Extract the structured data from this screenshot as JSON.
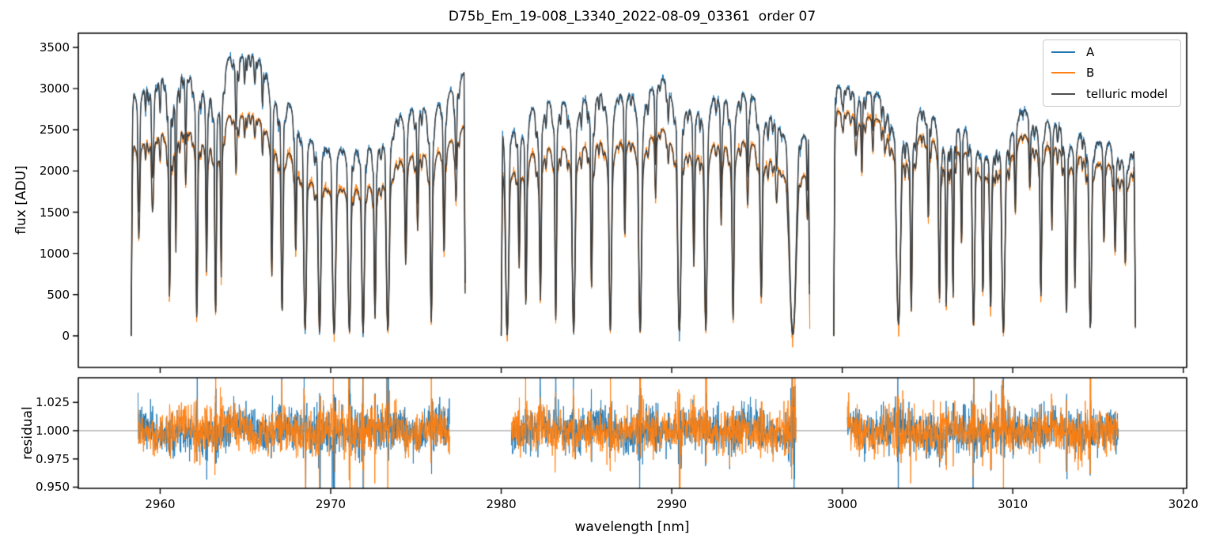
{
  "chart_data": {
    "type": "line",
    "title": "D75b_Em_19-008_L3340_2022-08-09_03361  order 07",
    "grid": false,
    "x": {
      "label": "wavelength [nm]",
      "lim": [
        2955.2,
        3020.2
      ],
      "ticks": [
        2960,
        2970,
        2980,
        2990,
        3000,
        3010,
        3020
      ],
      "tick_labels": [
        "2960",
        "2970",
        "2980",
        "2990",
        "3000",
        "3010",
        "3020"
      ]
    },
    "flux_axis": {
      "label": "flux [ADU]",
      "lim": [
        -384,
        3672
      ],
      "ticks": [
        0,
        500,
        1000,
        1500,
        2000,
        2500,
        3000,
        3500
      ],
      "tick_labels": [
        "0",
        "500",
        "1000",
        "1500",
        "2000",
        "2500",
        "3000",
        "3500"
      ]
    },
    "residual_axis": {
      "label": "residual",
      "lim": [
        0.9489,
        1.0469
      ],
      "ticks": [
        0.95,
        0.975,
        1.0,
        1.025
      ],
      "tick_labels": [
        "0.950",
        "0.975",
        "1.000",
        "1.025"
      ],
      "reference_value": 1.0,
      "reference_color": "#8a8a8a"
    },
    "legend": {
      "position": "upper right",
      "entries": [
        {
          "label": "A",
          "color": "#1f77b4"
        },
        {
          "label": "B",
          "color": "#ff7f0e"
        },
        {
          "label": "telluric model",
          "color": "#4d4d4d"
        }
      ]
    },
    "series": [
      {
        "name": "A",
        "role": "data",
        "color": "#1f77b4"
      },
      {
        "name": "B",
        "role": "data",
        "color": "#ff7f0e"
      },
      {
        "name": "telluric model",
        "role": "model",
        "color": "#3d3d3d"
      }
    ],
    "segments": [
      {
        "flux_range": [
          2958.3,
          2977.9
        ],
        "residual_range": [
          2958.7,
          2977.0
        ]
      },
      {
        "flux_range": [
          2980.0,
          2998.1
        ],
        "residual_range": [
          2980.6,
          2997.3
        ]
      },
      {
        "flux_range": [
          2999.5,
          3017.2
        ],
        "residual_range": [
          3000.3,
          3016.2
        ]
      }
    ],
    "continuum_A": [
      [
        2958.3,
        3150
      ],
      [
        2959.2,
        3330
      ],
      [
        2960.3,
        3440
      ],
      [
        2961.5,
        3470
      ],
      [
        2963.0,
        3490
      ],
      [
        2964.3,
        3540
      ],
      [
        2965.3,
        3560
      ],
      [
        2966.2,
        3470
      ],
      [
        2967.0,
        3330
      ],
      [
        2967.8,
        3130
      ],
      [
        2968.8,
        3030
      ],
      [
        2970.0,
        2970
      ],
      [
        2971.3,
        2910
      ],
      [
        2972.5,
        2940
      ],
      [
        2973.8,
        3010
      ],
      [
        2975.0,
        3080
      ],
      [
        2976.2,
        3170
      ],
      [
        2977.3,
        3230
      ],
      [
        2977.9,
        3250
      ],
      [
        2980.0,
        3000
      ],
      [
        2981.0,
        3060
      ],
      [
        2982.5,
        3140
      ],
      [
        2984.0,
        3220
      ],
      [
        2986.0,
        3300
      ],
      [
        2988.0,
        3350
      ],
      [
        2989.5,
        3360
      ],
      [
        2991.0,
        3330
      ],
      [
        2992.5,
        3290
      ],
      [
        2994.0,
        3210
      ],
      [
        2995.5,
        3130
      ],
      [
        2997.0,
        3060
      ],
      [
        2998.1,
        3000
      ],
      [
        2999.5,
        3100
      ],
      [
        3001.0,
        3110
      ],
      [
        3003.0,
        3070
      ],
      [
        3005.0,
        2980
      ],
      [
        3007.0,
        2900
      ],
      [
        3009.0,
        2870
      ],
      [
        3010.5,
        2900
      ],
      [
        3011.5,
        2880
      ],
      [
        3013.0,
        2790
      ],
      [
        3014.5,
        2740
      ],
      [
        3015.5,
        2620
      ],
      [
        3016.3,
        2480
      ],
      [
        3017.2,
        2300
      ]
    ],
    "continuum_B": [
      [
        2958.3,
        2480
      ],
      [
        2959.2,
        2610
      ],
      [
        2960.3,
        2700
      ],
      [
        2961.5,
        2730
      ],
      [
        2963.0,
        2750
      ],
      [
        2964.3,
        2790
      ],
      [
        2965.3,
        2800
      ],
      [
        2966.2,
        2720
      ],
      [
        2967.0,
        2610
      ],
      [
        2967.8,
        2460
      ],
      [
        2968.8,
        2380
      ],
      [
        2970.0,
        2330
      ],
      [
        2971.3,
        2300
      ],
      [
        2972.5,
        2330
      ],
      [
        2973.8,
        2390
      ],
      [
        2975.0,
        2450
      ],
      [
        2976.2,
        2520
      ],
      [
        2977.3,
        2570
      ],
      [
        2977.9,
        2590
      ],
      [
        2980.0,
        2400
      ],
      [
        2981.0,
        2450
      ],
      [
        2982.5,
        2520
      ],
      [
        2984.0,
        2580
      ],
      [
        2986.0,
        2640
      ],
      [
        2988.0,
        2690
      ],
      [
        2989.5,
        2700
      ],
      [
        2991.0,
        2670
      ],
      [
        2992.5,
        2640
      ],
      [
        2994.0,
        2570
      ],
      [
        2995.5,
        2500
      ],
      [
        2997.0,
        2440
      ],
      [
        2998.1,
        2400
      ],
      [
        2999.5,
        2800
      ],
      [
        3001.0,
        2790
      ],
      [
        3003.0,
        2750
      ],
      [
        3005.0,
        2650
      ],
      [
        3007.0,
        2580
      ],
      [
        3009.0,
        2560
      ],
      [
        3010.5,
        2580
      ],
      [
        3011.5,
        2560
      ],
      [
        3013.0,
        2480
      ],
      [
        3014.5,
        2440
      ],
      [
        3015.5,
        2320
      ],
      [
        3016.3,
        2200
      ],
      [
        3017.2,
        2050
      ]
    ],
    "telluric_lines": [
      [
        2958.75,
        0.5,
        0.06
      ],
      [
        2959.55,
        0.4,
        0.06
      ],
      [
        2960.0,
        0.12,
        0.04
      ],
      [
        2960.55,
        0.83,
        0.05
      ],
      [
        2960.92,
        0.6,
        0.035
      ],
      [
        2961.5,
        0.3,
        0.045
      ],
      [
        2962.15,
        0.93,
        0.055
      ],
      [
        2962.72,
        0.7,
        0.045
      ],
      [
        2963.25,
        0.9,
        0.05
      ],
      [
        2963.58,
        0.72,
        0.04
      ],
      [
        2964.45,
        0.28,
        0.045
      ],
      [
        2964.95,
        0.12,
        0.04
      ],
      [
        2965.55,
        0.12,
        0.05
      ],
      [
        2966.0,
        0.18,
        0.04
      ],
      [
        2966.55,
        0.7,
        0.05
      ],
      [
        2967.15,
        0.9,
        0.06
      ],
      [
        2967.95,
        0.55,
        0.045
      ],
      [
        2968.5,
        0.97,
        0.085
      ],
      [
        2969.35,
        0.985,
        0.085
      ],
      [
        2970.2,
        0.99,
        0.105
      ],
      [
        2971.1,
        0.975,
        0.085
      ],
      [
        2971.9,
        0.985,
        0.085
      ],
      [
        2972.6,
        0.9,
        0.055
      ],
      [
        2973.35,
        0.975,
        0.095
      ],
      [
        2974.4,
        0.62,
        0.055
      ],
      [
        2975.1,
        0.45,
        0.05
      ],
      [
        2975.9,
        0.93,
        0.065
      ],
      [
        2976.65,
        0.6,
        0.055
      ],
      [
        2977.35,
        0.35,
        0.05
      ],
      [
        2980.35,
        0.995,
        0.1
      ],
      [
        2981.05,
        0.6,
        0.045
      ],
      [
        2981.45,
        0.85,
        0.05
      ],
      [
        2982.3,
        0.82,
        0.055
      ],
      [
        2983.2,
        0.92,
        0.05
      ],
      [
        2984.25,
        0.985,
        0.095
      ],
      [
        2985.3,
        0.78,
        0.05
      ],
      [
        2986.4,
        0.975,
        0.08
      ],
      [
        2987.25,
        0.52,
        0.045
      ],
      [
        2988.15,
        0.985,
        0.09
      ],
      [
        2989.05,
        0.28,
        0.045
      ],
      [
        2989.8,
        0.15,
        0.04
      ],
      [
        2990.45,
        0.985,
        0.105
      ],
      [
        2991.3,
        0.62,
        0.05
      ],
      [
        2992.0,
        0.975,
        0.085
      ],
      [
        2992.9,
        0.45,
        0.045
      ],
      [
        2993.6,
        0.92,
        0.06
      ],
      [
        2994.45,
        0.35,
        0.045
      ],
      [
        2995.25,
        0.82,
        0.065
      ],
      [
        2996.15,
        0.25,
        0.05
      ],
      [
        2997.1,
        0.995,
        0.21
      ],
      [
        2997.95,
        0.3,
        0.04
      ],
      [
        3000.05,
        0.1,
        0.04
      ],
      [
        3000.8,
        0.2,
        0.06
      ],
      [
        3001.15,
        0.28,
        0.04
      ],
      [
        3001.8,
        0.1,
        0.04
      ],
      [
        3002.5,
        0.12,
        0.04
      ],
      [
        3003.3,
        0.95,
        0.125
      ],
      [
        3004.05,
        0.88,
        0.055
      ],
      [
        3005.05,
        0.45,
        0.045
      ],
      [
        3005.7,
        0.82,
        0.05
      ],
      [
        3006.1,
        0.86,
        0.045
      ],
      [
        3006.5,
        0.82,
        0.04
      ],
      [
        3007.0,
        0.55,
        0.04
      ],
      [
        3007.7,
        0.95,
        0.075
      ],
      [
        3008.25,
        0.8,
        0.045
      ],
      [
        3008.7,
        0.88,
        0.055
      ],
      [
        3009.45,
        0.985,
        0.095
      ],
      [
        3010.15,
        0.35,
        0.045
      ],
      [
        3011.0,
        0.28,
        0.045
      ],
      [
        3011.65,
        0.82,
        0.05
      ],
      [
        3012.3,
        0.42,
        0.04
      ],
      [
        3013.15,
        0.9,
        0.055
      ],
      [
        3013.65,
        0.75,
        0.045
      ],
      [
        3014.55,
        0.965,
        0.075
      ],
      [
        3015.35,
        0.5,
        0.05
      ],
      [
        3016.0,
        0.48,
        0.05
      ],
      [
        3016.6,
        0.55,
        0.05
      ]
    ],
    "micro_lines_spec": {
      "mean_spacing_nm": 0.34,
      "depth_range": [
        0.03,
        0.12
      ],
      "sigma_range": [
        0.03,
        0.06
      ],
      "seed": 101
    },
    "noise": {
      "flux_sigma_adu": 24,
      "flux_core_extra_adu": 26,
      "residual_sigma": 0.0085,
      "residual_T_floor": 0.05,
      "seed": 7
    }
  }
}
